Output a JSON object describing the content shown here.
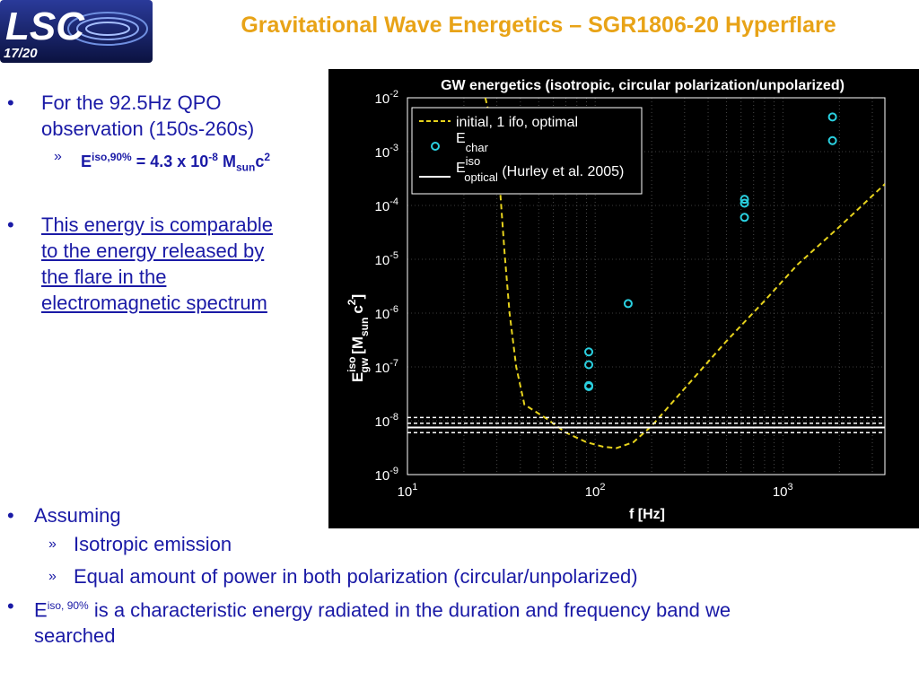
{
  "header": {
    "logo_text": "LSC",
    "page_number": "17/20",
    "title": "Gravitational Wave Energetics – SGR1806-20 Hyperflare"
  },
  "colors": {
    "title": "#e8a317",
    "body_text": "#1a1aa6",
    "chart_bg": "#000000",
    "dashed_line": "#e6d21c",
    "markers": "#2ad0e0"
  },
  "bullets": {
    "b1_line1": "For the 92.5Hz QPO",
    "b1_line2": "observation (150s-260s)",
    "b1_sub_prefix": "E",
    "b1_sub_sup": "iso,90%",
    "b1_sub_eq": " = 4.3 x 10",
    "b1_sub_exp": "-8",
    "b1_sub_unit": " M",
    "b1_sub_unit_sub": "sun",
    "b1_sub_c": "c",
    "b1_sub_c_exp": "2",
    "b2_line1": "This energy is comparable",
    "b2_line2": "to the energy released by",
    "b2_line3": "the flare in the",
    "b2_line4": "electromagnetic spectrum",
    "b3": "Assuming",
    "b3_sub1": "Isotropic emission",
    "b3_sub2": "Equal amount of power in both polarization (circular/unpolarized)",
    "b4_prefix": "E",
    "b4_sup": "iso, 90%",
    "b4_text": " is a characteristic energy radiated in the duration and frequency band we",
    "b4_text2": "searched",
    "bullet_glyph": "•",
    "arrow_glyph": "»"
  },
  "chart_data": {
    "type": "scatter",
    "title": "GW energetics (isotropic, circular polarization/unpolarized)",
    "xlabel": "f [Hz]",
    "ylabel_main": "E",
    "ylabel_sup": "iso",
    "ylabel_sub": "gw",
    "ylabel_unit": "[M",
    "ylabel_unit_sub": "sun",
    "ylabel_unit_c": "c",
    "ylabel_unit_c_exp": "2",
    "ylabel_close": "]",
    "xscale": "log",
    "yscale": "log",
    "xlim": [
      10,
      3500
    ],
    "ylim": [
      1e-09,
      0.01
    ],
    "grid": true,
    "legend_position": "top-left",
    "xticks": [
      {
        "value": 10,
        "base": "10",
        "exp": "1"
      },
      {
        "value": 100,
        "base": "10",
        "exp": "2"
      },
      {
        "value": 1000,
        "base": "10",
        "exp": "3"
      }
    ],
    "yticks": [
      {
        "value": 0.01,
        "base": "10",
        "exp": "-2"
      },
      {
        "value": 0.001,
        "base": "10",
        "exp": "-3"
      },
      {
        "value": 0.0001,
        "base": "10",
        "exp": "-4"
      },
      {
        "value": 1e-05,
        "base": "10",
        "exp": "-5"
      },
      {
        "value": 1e-06,
        "base": "10",
        "exp": "-6"
      },
      {
        "value": 1e-07,
        "base": "10",
        "exp": "-7"
      },
      {
        "value": 1e-08,
        "base": "10",
        "exp": "-8"
      },
      {
        "value": 1e-09,
        "base": "10",
        "exp": "-9"
      }
    ],
    "legend": [
      {
        "kind": "dashed",
        "label": "initial, 1 ifo, optimal"
      },
      {
        "kind": "circle",
        "label_main": "E",
        "label_sub": "char"
      },
      {
        "kind": "solid",
        "label_main": "E",
        "label_sup": "iso",
        "label_sub": "optical",
        "label_tail": " (Hurley et al. 2005)"
      }
    ],
    "series": [
      {
        "kind": "dashed",
        "points": [
          [
            26,
            0.01
          ],
          [
            30,
            0.0012
          ],
          [
            33,
            1.2e-05
          ],
          [
            35,
            1e-06
          ],
          [
            38,
            1e-07
          ],
          [
            42,
            2e-08
          ],
          [
            55,
            1.1e-08
          ],
          [
            70,
            6e-09
          ],
          [
            90,
            4e-09
          ],
          [
            110,
            3.3e-09
          ],
          [
            130,
            3.1e-09
          ],
          [
            160,
            4e-09
          ],
          [
            200,
            8e-09
          ],
          [
            300,
            4e-08
          ],
          [
            500,
            3e-07
          ],
          [
            800,
            1.7e-06
          ],
          [
            1200,
            8e-06
          ],
          [
            2000,
            4e-05
          ],
          [
            3500,
            0.00025
          ]
        ]
      },
      {
        "kind": "circle",
        "points": [
          [
            92.5,
            1.9e-07
          ],
          [
            92.5,
            1.1e-07
          ],
          [
            92.5,
            4.5e-08
          ],
          [
            92.5,
            4.3e-08
          ],
          [
            150,
            1.5e-06
          ],
          [
            625,
            0.00013
          ],
          [
            625,
            0.00011
          ],
          [
            625,
            6e-05
          ],
          [
            1840,
            0.0044
          ],
          [
            1840,
            0.0016
          ]
        ]
      },
      {
        "kind": "solid",
        "points": [
          [
            10,
            7.5e-09
          ],
          [
            3500,
            7.5e-09
          ]
        ]
      },
      {
        "kind": "dashed_white",
        "levels": [
          1.15e-08,
          9e-09,
          6e-09
        ]
      }
    ]
  }
}
